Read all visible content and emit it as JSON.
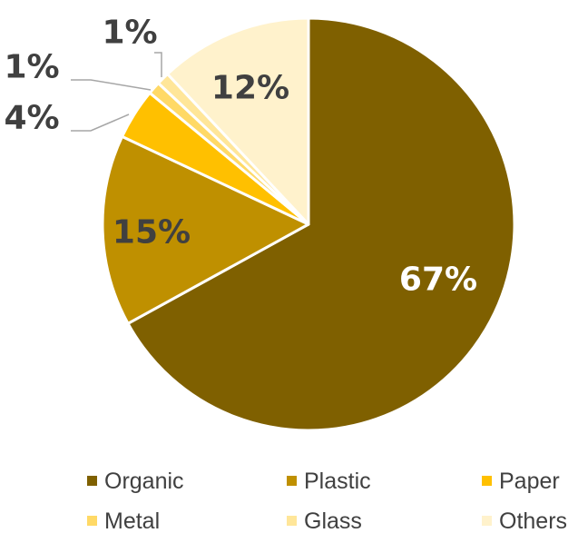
{
  "chart_data": {
    "type": "pie",
    "title": "",
    "slices": [
      {
        "name": "Organic",
        "value": 67,
        "label": "67%",
        "color": "#7F6000",
        "label_color": "#FFFFFF"
      },
      {
        "name": "Plastic",
        "value": 15,
        "label": "15%",
        "color": "#BF9000",
        "label_color": "#404040"
      },
      {
        "name": "Paper",
        "value": 4,
        "label": "4%",
        "color": "#FFC000",
        "label_color": "#404040"
      },
      {
        "name": "Metal",
        "value": 1,
        "label": "1%",
        "color": "#FFD966",
        "label_color": "#404040"
      },
      {
        "name": "Glass",
        "value": 1,
        "label": "1%",
        "color": "#FFE699",
        "label_color": "#404040"
      },
      {
        "name": "Others",
        "value": 12,
        "label": "12%",
        "color": "#FFF2CC",
        "label_color": "#404040"
      }
    ],
    "start_angle_deg": 0,
    "direction": "clockwise",
    "legend_position": "bottom",
    "leader_line_color": "#A6A6A6"
  }
}
